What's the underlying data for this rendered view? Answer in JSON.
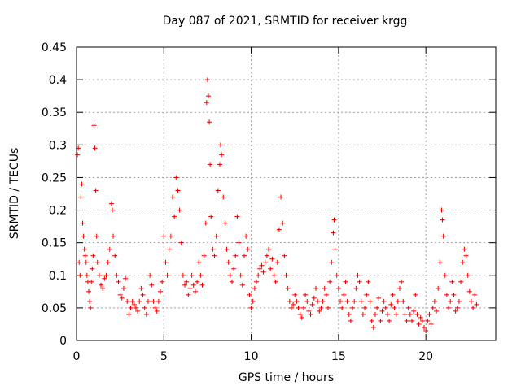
{
  "chart_data": {
    "type": "scatter",
    "title": "Day 087 of 2021, SRMTID for receiver krgg",
    "xlabel": "GPS time / hours",
    "ylabel": "SRMTID / TECUs",
    "xlim": [
      0,
      24
    ],
    "ylim": [
      0,
      0.45
    ],
    "xticks": [
      0,
      5,
      10,
      15,
      20
    ],
    "yticks": [
      0,
      0.05,
      0.1,
      0.15,
      0.2,
      0.25,
      0.3,
      0.35,
      0.4,
      0.45
    ],
    "grid": true,
    "marker": "+",
    "color": "#e00000",
    "series": [
      {
        "name": "SRMTID",
        "points": [
          [
            0.05,
            0.285
          ],
          [
            0.1,
            0.295
          ],
          [
            0.15,
            0.12
          ],
          [
            0.2,
            0.1
          ],
          [
            0.25,
            0.22
          ],
          [
            0.3,
            0.24
          ],
          [
            0.35,
            0.18
          ],
          [
            0.4,
            0.16
          ],
          [
            0.45,
            0.14
          ],
          [
            0.5,
            0.13
          ],
          [
            0.55,
            0.12
          ],
          [
            0.6,
            0.1
          ],
          [
            0.65,
            0.09
          ],
          [
            0.7,
            0.075
          ],
          [
            0.75,
            0.06
          ],
          [
            0.8,
            0.05
          ],
          [
            0.85,
            0.09
          ],
          [
            0.9,
            0.11
          ],
          [
            0.95,
            0.13
          ],
          [
            1.0,
            0.33
          ],
          [
            1.05,
            0.295
          ],
          [
            1.1,
            0.23
          ],
          [
            1.15,
            0.16
          ],
          [
            1.2,
            0.12
          ],
          [
            1.3,
            0.1
          ],
          [
            1.4,
            0.085
          ],
          [
            1.5,
            0.08
          ],
          [
            1.6,
            0.095
          ],
          [
            1.7,
            0.1
          ],
          [
            1.8,
            0.12
          ],
          [
            1.9,
            0.14
          ],
          [
            2.0,
            0.21
          ],
          [
            2.05,
            0.2
          ],
          [
            2.1,
            0.16
          ],
          [
            2.2,
            0.13
          ],
          [
            2.3,
            0.1
          ],
          [
            2.4,
            0.09
          ],
          [
            2.5,
            0.07
          ],
          [
            2.6,
            0.065
          ],
          [
            2.7,
            0.08
          ],
          [
            2.8,
            0.095
          ],
          [
            2.9,
            0.06
          ],
          [
            3.0,
            0.04
          ],
          [
            3.1,
            0.05
          ],
          [
            3.2,
            0.06
          ],
          [
            3.3,
            0.055
          ],
          [
            3.4,
            0.05
          ],
          [
            3.5,
            0.045
          ],
          [
            3.6,
            0.06
          ],
          [
            3.7,
            0.08
          ],
          [
            3.8,
            0.07
          ],
          [
            3.9,
            0.05
          ],
          [
            4.0,
            0.04
          ],
          [
            4.1,
            0.06
          ],
          [
            4.2,
            0.1
          ],
          [
            4.3,
            0.085
          ],
          [
            4.4,
            0.06
          ],
          [
            4.5,
            0.05
          ],
          [
            4.6,
            0.045
          ],
          [
            4.7,
            0.06
          ],
          [
            4.8,
            0.075
          ],
          [
            4.9,
            0.09
          ],
          [
            5.0,
            0.16
          ],
          [
            5.1,
            0.12
          ],
          [
            5.2,
            0.1
          ],
          [
            5.3,
            0.14
          ],
          [
            5.4,
            0.16
          ],
          [
            5.5,
            0.22
          ],
          [
            5.6,
            0.19
          ],
          [
            5.7,
            0.25
          ],
          [
            5.8,
            0.23
          ],
          [
            5.9,
            0.2
          ],
          [
            6.0,
            0.15
          ],
          [
            6.1,
            0.1
          ],
          [
            6.2,
            0.085
          ],
          [
            6.3,
            0.09
          ],
          [
            6.4,
            0.07
          ],
          [
            6.5,
            0.08
          ],
          [
            6.6,
            0.1
          ],
          [
            6.7,
            0.085
          ],
          [
            6.8,
            0.075
          ],
          [
            6.9,
            0.09
          ],
          [
            7.0,
            0.12
          ],
          [
            7.1,
            0.1
          ],
          [
            7.2,
            0.085
          ],
          [
            7.3,
            0.13
          ],
          [
            7.4,
            0.18
          ],
          [
            7.45,
            0.365
          ],
          [
            7.5,
            0.4
          ],
          [
            7.55,
            0.375
          ],
          [
            7.6,
            0.335
          ],
          [
            7.65,
            0.27
          ],
          [
            7.7,
            0.19
          ],
          [
            7.8,
            0.14
          ],
          [
            7.9,
            0.13
          ],
          [
            8.0,
            0.16
          ],
          [
            8.1,
            0.23
          ],
          [
            8.2,
            0.27
          ],
          [
            8.25,
            0.3
          ],
          [
            8.3,
            0.285
          ],
          [
            8.4,
            0.22
          ],
          [
            8.5,
            0.18
          ],
          [
            8.6,
            0.14
          ],
          [
            8.7,
            0.12
          ],
          [
            8.8,
            0.1
          ],
          [
            8.9,
            0.09
          ],
          [
            9.0,
            0.11
          ],
          [
            9.1,
            0.13
          ],
          [
            9.2,
            0.19
          ],
          [
            9.3,
            0.15
          ],
          [
            9.4,
            0.1
          ],
          [
            9.5,
            0.085
          ],
          [
            9.6,
            0.13
          ],
          [
            9.7,
            0.16
          ],
          [
            9.8,
            0.14
          ],
          [
            9.9,
            0.07
          ],
          [
            10.0,
            0.05
          ],
          [
            10.1,
            0.06
          ],
          [
            10.2,
            0.08
          ],
          [
            10.3,
            0.09
          ],
          [
            10.4,
            0.1
          ],
          [
            10.5,
            0.11
          ],
          [
            10.6,
            0.115
          ],
          [
            10.7,
            0.105
          ],
          [
            10.8,
            0.12
          ],
          [
            10.9,
            0.13
          ],
          [
            11.0,
            0.14
          ],
          [
            11.1,
            0.11
          ],
          [
            11.2,
            0.125
          ],
          [
            11.3,
            0.1
          ],
          [
            11.4,
            0.09
          ],
          [
            11.5,
            0.12
          ],
          [
            11.6,
            0.17
          ],
          [
            11.7,
            0.22
          ],
          [
            11.8,
            0.18
          ],
          [
            11.9,
            0.13
          ],
          [
            12.0,
            0.1
          ],
          [
            12.1,
            0.08
          ],
          [
            12.2,
            0.06
          ],
          [
            12.3,
            0.05
          ],
          [
            12.4,
            0.055
          ],
          [
            12.5,
            0.07
          ],
          [
            12.6,
            0.06
          ],
          [
            12.7,
            0.05
          ],
          [
            12.8,
            0.04
          ],
          [
            12.9,
            0.035
          ],
          [
            13.0,
            0.05
          ],
          [
            13.1,
            0.07
          ],
          [
            13.2,
            0.06
          ],
          [
            13.3,
            0.045
          ],
          [
            13.4,
            0.04
          ],
          [
            13.5,
            0.055
          ],
          [
            13.6,
            0.065
          ],
          [
            13.7,
            0.08
          ],
          [
            13.8,
            0.06
          ],
          [
            13.9,
            0.045
          ],
          [
            14.0,
            0.05
          ],
          [
            14.1,
            0.06
          ],
          [
            14.2,
            0.08
          ],
          [
            14.3,
            0.07
          ],
          [
            14.4,
            0.05
          ],
          [
            14.5,
            0.09
          ],
          [
            14.6,
            0.12
          ],
          [
            14.7,
            0.165
          ],
          [
            14.75,
            0.185
          ],
          [
            14.8,
            0.14
          ],
          [
            14.9,
            0.1
          ],
          [
            15.0,
            0.08
          ],
          [
            15.1,
            0.06
          ],
          [
            15.2,
            0.05
          ],
          [
            15.3,
            0.07
          ],
          [
            15.4,
            0.09
          ],
          [
            15.5,
            0.06
          ],
          [
            15.6,
            0.04
          ],
          [
            15.7,
            0.03
          ],
          [
            15.8,
            0.05
          ],
          [
            15.9,
            0.06
          ],
          [
            16.0,
            0.08
          ],
          [
            16.1,
            0.1
          ],
          [
            16.2,
            0.09
          ],
          [
            16.3,
            0.06
          ],
          [
            16.4,
            0.04
          ],
          [
            16.5,
            0.05
          ],
          [
            16.6,
            0.07
          ],
          [
            16.7,
            0.09
          ],
          [
            16.8,
            0.06
          ],
          [
            16.9,
            0.03
          ],
          [
            17.0,
            0.02
          ],
          [
            17.1,
            0.04
          ],
          [
            17.2,
            0.05
          ],
          [
            17.3,
            0.065
          ],
          [
            17.4,
            0.03
          ],
          [
            17.5,
            0.045
          ],
          [
            17.6,
            0.06
          ],
          [
            17.7,
            0.05
          ],
          [
            17.8,
            0.04
          ],
          [
            17.9,
            0.03
          ],
          [
            18.0,
            0.055
          ],
          [
            18.1,
            0.07
          ],
          [
            18.2,
            0.05
          ],
          [
            18.3,
            0.04
          ],
          [
            18.4,
            0.06
          ],
          [
            18.5,
            0.08
          ],
          [
            18.6,
            0.09
          ],
          [
            18.7,
            0.06
          ],
          [
            18.8,
            0.04
          ],
          [
            18.9,
            0.03
          ],
          [
            19.0,
            0.05
          ],
          [
            19.1,
            0.04
          ],
          [
            19.2,
            0.03
          ],
          [
            19.3,
            0.045
          ],
          [
            19.4,
            0.07
          ],
          [
            19.5,
            0.04
          ],
          [
            19.6,
            0.025
          ],
          [
            19.7,
            0.035
          ],
          [
            19.8,
            0.03
          ],
          [
            19.9,
            0.02
          ],
          [
            20.0,
            0.015
          ],
          [
            20.1,
            0.03
          ],
          [
            20.2,
            0.04
          ],
          [
            20.3,
            0.025
          ],
          [
            20.4,
            0.05
          ],
          [
            20.5,
            0.06
          ],
          [
            20.6,
            0.045
          ],
          [
            20.7,
            0.08
          ],
          [
            20.8,
            0.12
          ],
          [
            20.9,
            0.2
          ],
          [
            20.95,
            0.185
          ],
          [
            21.0,
            0.16
          ],
          [
            21.1,
            0.1
          ],
          [
            21.2,
            0.07
          ],
          [
            21.3,
            0.05
          ],
          [
            21.4,
            0.06
          ],
          [
            21.5,
            0.09
          ],
          [
            21.6,
            0.07
          ],
          [
            21.7,
            0.045
          ],
          [
            21.8,
            0.05
          ],
          [
            21.9,
            0.06
          ],
          [
            22.0,
            0.09
          ],
          [
            22.1,
            0.12
          ],
          [
            22.2,
            0.14
          ],
          [
            22.3,
            0.13
          ],
          [
            22.4,
            0.1
          ],
          [
            22.5,
            0.075
          ],
          [
            22.6,
            0.06
          ],
          [
            22.7,
            0.05
          ],
          [
            22.8,
            0.07
          ],
          [
            22.9,
            0.055
          ]
        ]
      }
    ]
  }
}
